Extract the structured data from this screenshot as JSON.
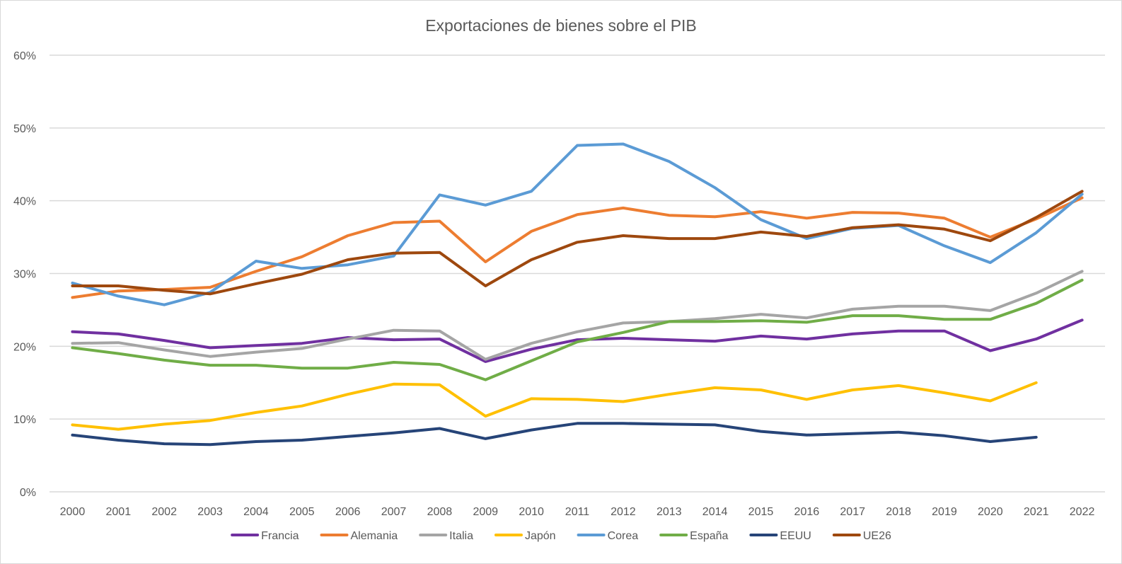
{
  "chart_data": {
    "type": "line",
    "title": "Exportaciones de bienes sobre el PIB",
    "xlabel": "",
    "ylabel": "",
    "ylim": [
      0,
      60
    ],
    "y_unit": "%",
    "y_ticks": [
      "0%",
      "10%",
      "20%",
      "30%",
      "40%",
      "50%",
      "60%"
    ],
    "y_tick_values": [
      0,
      10,
      20,
      30,
      40,
      50,
      60
    ],
    "grid": true,
    "legend_position": "bottom",
    "categories": [
      "2000",
      "2001",
      "2002",
      "2003",
      "2004",
      "2005",
      "2006",
      "2007",
      "2008",
      "2009",
      "2010",
      "2011",
      "2012",
      "2013",
      "2014",
      "2015",
      "2016",
      "2017",
      "2018",
      "2019",
      "2020",
      "2021",
      "2022"
    ],
    "series": [
      {
        "name": "Francia",
        "color": "#7030a0",
        "values": [
          22.0,
          21.7,
          20.8,
          19.8,
          20.1,
          20.4,
          21.2,
          20.9,
          21.0,
          17.9,
          19.6,
          20.9,
          21.1,
          20.9,
          20.7,
          21.4,
          21.0,
          21.7,
          22.1,
          22.1,
          19.4,
          21.0,
          23.6
        ]
      },
      {
        "name": "Alemania",
        "color": "#ed7d31",
        "values": [
          26.7,
          27.6,
          27.8,
          28.1,
          30.3,
          32.3,
          35.2,
          37.0,
          37.2,
          31.6,
          35.8,
          38.1,
          39.0,
          38.0,
          37.8,
          38.5,
          37.6,
          38.4,
          38.3,
          37.6,
          35.0,
          37.5,
          40.4
        ]
      },
      {
        "name": "Italia",
        "color": "#a5a5a5",
        "values": [
          20.4,
          20.5,
          19.5,
          18.6,
          19.2,
          19.7,
          21.0,
          22.2,
          22.1,
          18.2,
          20.4,
          22.0,
          23.2,
          23.4,
          23.8,
          24.4,
          23.9,
          25.1,
          25.5,
          25.5,
          24.9,
          27.3,
          30.3
        ]
      },
      {
        "name": "Japón",
        "color": "#ffc000",
        "values": [
          9.2,
          8.6,
          9.3,
          9.8,
          10.9,
          11.8,
          13.4,
          14.8,
          14.7,
          10.4,
          12.8,
          12.7,
          12.4,
          13.4,
          14.3,
          14.0,
          12.7,
          14.0,
          14.6,
          13.6,
          12.5,
          15.0,
          null
        ]
      },
      {
        "name": "Corea",
        "color": "#5b9bd5",
        "values": [
          28.7,
          26.9,
          25.7,
          27.4,
          31.7,
          30.7,
          31.2,
          32.4,
          40.8,
          39.4,
          41.3,
          47.6,
          47.8,
          45.4,
          41.8,
          37.4,
          34.8,
          36.2,
          36.6,
          33.8,
          31.5,
          35.6,
          40.9
        ]
      },
      {
        "name": "España",
        "color": "#70ad47",
        "values": [
          19.8,
          19.0,
          18.1,
          17.4,
          17.4,
          17.0,
          17.0,
          17.8,
          17.5,
          15.4,
          18.0,
          20.6,
          21.9,
          23.4,
          23.4,
          23.5,
          23.3,
          24.2,
          24.2,
          23.7,
          23.7,
          25.9,
          29.1
        ]
      },
      {
        "name": "EEUU",
        "color": "#264478",
        "values": [
          7.8,
          7.1,
          6.6,
          6.5,
          6.9,
          7.1,
          7.6,
          8.1,
          8.7,
          7.3,
          8.5,
          9.4,
          9.4,
          9.3,
          9.2,
          8.3,
          7.8,
          8.0,
          8.2,
          7.7,
          6.9,
          7.5,
          null
        ]
      },
      {
        "name": "UE26",
        "color": "#9e480e",
        "values": [
          28.3,
          28.3,
          27.7,
          27.2,
          28.6,
          29.9,
          31.9,
          32.8,
          32.9,
          28.3,
          31.9,
          34.3,
          35.2,
          34.8,
          34.8,
          35.7,
          35.1,
          36.3,
          36.7,
          36.1,
          34.5,
          37.7,
          41.3
        ]
      }
    ]
  }
}
